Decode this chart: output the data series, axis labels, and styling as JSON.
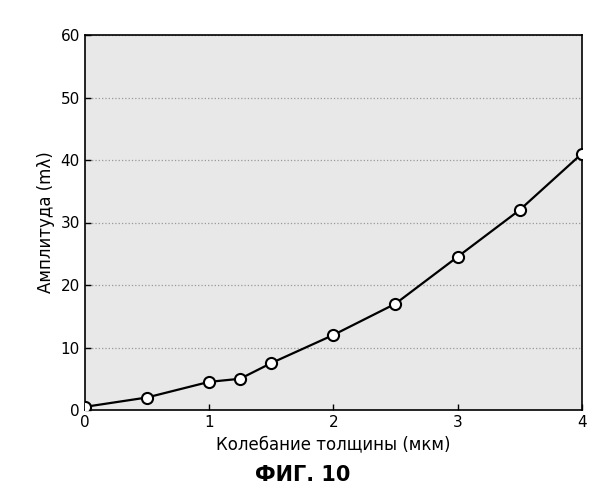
{
  "x_data": [
    0,
    0.5,
    1.0,
    1.25,
    1.5,
    2.0,
    2.5,
    3.0,
    3.5,
    4.0
  ],
  "y_data": [
    0.5,
    2.0,
    4.5,
    5.0,
    7.5,
    12.0,
    17.0,
    24.5,
    32.0,
    41.0
  ],
  "xlabel": "Колебание толщины (мкм)",
  "ylabel": "Амплитуда (mλ)",
  "xlim": [
    0,
    4
  ],
  "ylim": [
    0,
    60
  ],
  "xticks": [
    0,
    1,
    2,
    3,
    4
  ],
  "yticks": [
    0,
    10,
    20,
    30,
    40,
    50,
    60
  ],
  "grid_color": "#999999",
  "line_color": "#000000",
  "marker_color": "#ffffff",
  "marker_edge_color": "#000000",
  "marker_size": 8,
  "line_width": 1.6,
  "fig_caption": "ФИГ. 10",
  "plot_bg_color": "#e8e8e8",
  "background_color": "#ffffff",
  "font_size_label": 12,
  "font_size_tick": 11,
  "font_size_caption": 15
}
